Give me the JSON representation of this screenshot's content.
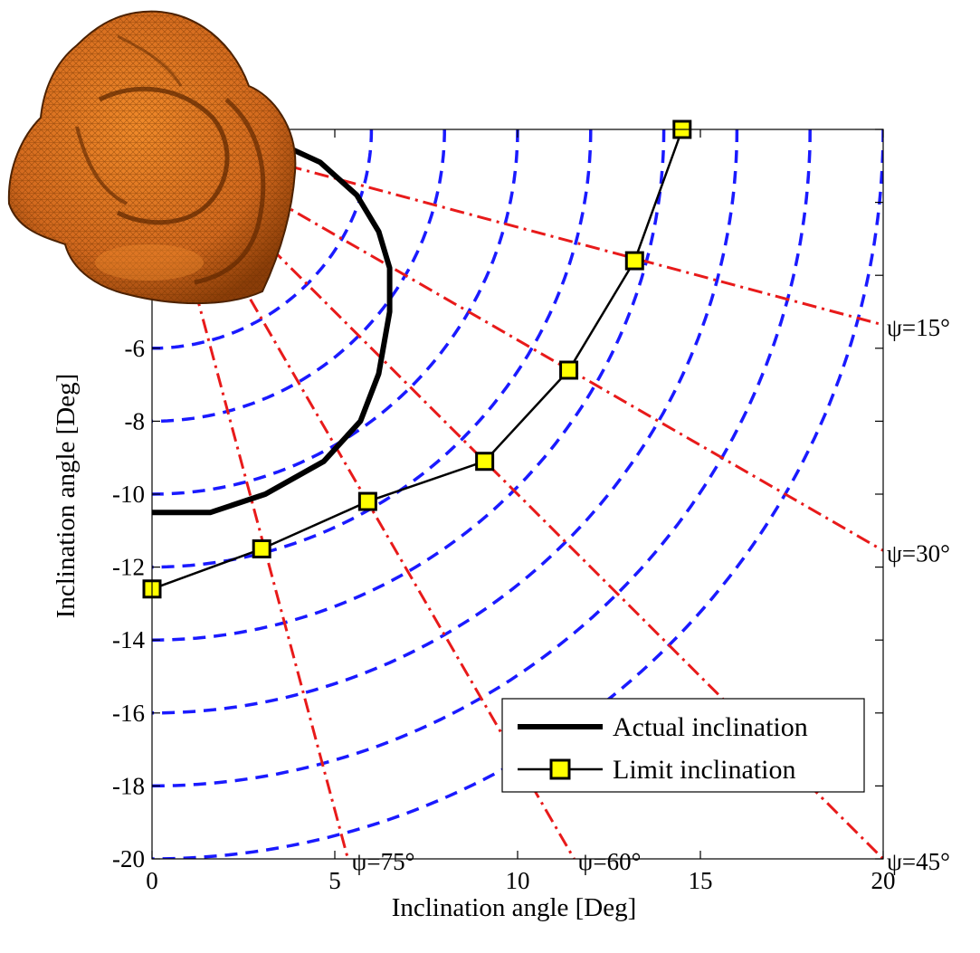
{
  "chart_data": {
    "type": "line",
    "xlabel": "Inclination angle [Deg]",
    "ylabel": "Inclination angle [Deg]",
    "xlim": [
      0,
      20
    ],
    "ylim": [
      -20,
      0
    ],
    "x_ticks": [
      {
        "value": 0,
        "label": "0"
      },
      {
        "value": 5,
        "label": "5"
      },
      {
        "value": 10,
        "label": "10"
      },
      {
        "value": 15,
        "label": "15"
      },
      {
        "value": 20,
        "label": "20"
      }
    ],
    "y_ticks": [
      {
        "value": -6,
        "label": "-6"
      },
      {
        "value": -8,
        "label": "-8"
      },
      {
        "value": -10,
        "label": "-10"
      },
      {
        "value": -12,
        "label": "-12"
      },
      {
        "value": -14,
        "label": "-14"
      },
      {
        "value": -16,
        "label": "-16"
      },
      {
        "value": -18,
        "label": "-18"
      },
      {
        "value": -20,
        "label": "-20"
      }
    ],
    "grid": false,
    "legend_position": "bottom-right",
    "guide_circles": {
      "color": "#1a1aff",
      "style": "dashed",
      "radii": [
        6,
        8,
        10,
        12,
        14,
        16,
        18,
        20
      ]
    },
    "guide_rays": {
      "color": "#e81a1a",
      "style": "dash-dot",
      "rays": [
        {
          "angle_deg": 15,
          "label": "ψ=15°"
        },
        {
          "angle_deg": 30,
          "label": "ψ=30°"
        },
        {
          "angle_deg": 45,
          "label": "ψ=45°"
        },
        {
          "angle_deg": 60,
          "label": "ψ=60°"
        },
        {
          "angle_deg": 75,
          "label": "ψ=75°"
        }
      ]
    },
    "series": [
      {
        "name": "Actual inclination",
        "color": "#000000",
        "marker": "none",
        "x": [
          0,
          1.6,
          3.1,
          4.7,
          5.7,
          6.2,
          6.5,
          6.5,
          6.2,
          5.6,
          4.6,
          3.3,
          1.8,
          0
        ],
        "y": [
          -10.5,
          -10.5,
          -10.0,
          -9.1,
          -8.0,
          -6.7,
          -5.0,
          -3.8,
          -2.8,
          -1.8,
          -0.9,
          -0.3,
          0,
          0
        ]
      },
      {
        "name": "Limit inclination",
        "color": "#000000",
        "marker": "square",
        "marker_fill": "#ffff00",
        "x": [
          0,
          3.0,
          5.9,
          9.1,
          11.4,
          13.2,
          14.5
        ],
        "y": [
          -12.6,
          -11.5,
          -10.2,
          -9.1,
          -6.6,
          -3.6,
          0
        ]
      }
    ]
  },
  "image_decoration": {
    "description_icon": "orange-3d-mesh-model",
    "mesh_color": "#d2691e"
  }
}
